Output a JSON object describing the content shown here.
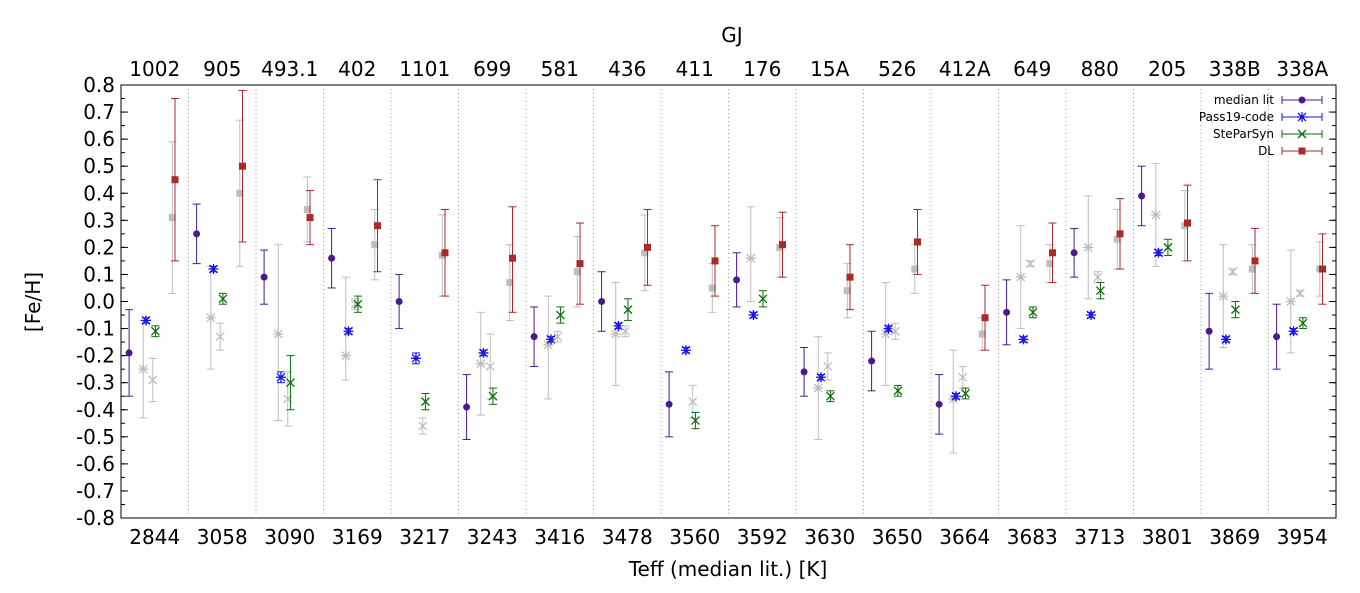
{
  "chart_data": {
    "type": "scatter",
    "title": "",
    "top_axis_title": "GJ",
    "xlabel": "Teff (median lit.) [K]",
    "ylabel": "[Fe/H]",
    "ylim": [
      -0.8,
      0.8
    ],
    "yticks": [
      "0.8",
      "0.7",
      "0.6",
      "0.5",
      "0.4",
      "0.3",
      "0.2",
      "0.1",
      "0.0",
      "-0.1",
      "-0.2",
      "-0.3",
      "-0.4",
      "-0.5",
      "-0.6",
      "-0.7",
      "-0.8"
    ],
    "categories": [
      "2844",
      "3058",
      "3090",
      "3169",
      "3217",
      "3243",
      "3416",
      "3478",
      "3560",
      "3592",
      "3630",
      "3650",
      "3664",
      "3683",
      "3713",
      "3801",
      "3869",
      "3954"
    ],
    "top_categories": [
      "1002",
      "905",
      "493.1",
      "402",
      "1101",
      "699",
      "581",
      "436",
      "411",
      "176",
      "15A",
      "526",
      "412A",
      "649",
      "880",
      "205",
      "338B",
      "338A"
    ],
    "grid": "vertical dotted separators",
    "legend_position": "top-right",
    "colors": {
      "median_lit": "#4b1a8c",
      "pass19": "#1414e6",
      "steparsyn": "#0a6e0a",
      "dl": "#aa2a2a",
      "gray": "#bdbdbd"
    },
    "series": [
      {
        "name": "median lit",
        "marker": "circle",
        "color": "#4b1a8c",
        "values": [
          -0.19,
          0.25,
          0.09,
          0.16,
          0.0,
          -0.39,
          -0.13,
          0.0,
          -0.38,
          0.08,
          -0.26,
          -0.22,
          -0.38,
          -0.04,
          0.18,
          0.39,
          -0.11,
          -0.13
        ],
        "err_low": [
          -0.35,
          0.14,
          -0.01,
          0.05,
          -0.1,
          -0.51,
          -0.24,
          -0.11,
          -0.5,
          -0.02,
          -0.35,
          -0.33,
          -0.49,
          -0.16,
          0.09,
          0.28,
          -0.25,
          -0.25
        ],
        "err_high": [
          -0.03,
          0.36,
          0.19,
          0.27,
          0.1,
          -0.27,
          -0.02,
          0.11,
          -0.26,
          0.18,
          -0.17,
          -0.11,
          -0.27,
          0.08,
          0.27,
          0.5,
          0.03,
          -0.01
        ]
      },
      {
        "name": "Pass19-code",
        "marker": "star",
        "color": "#1414e6",
        "values": [
          -0.07,
          0.12,
          -0.28,
          -0.11,
          -0.21,
          -0.19,
          -0.14,
          -0.09,
          -0.18,
          -0.05,
          -0.28,
          -0.1,
          -0.35,
          -0.14,
          -0.05,
          0.18,
          -0.14,
          -0.11
        ],
        "err_low": [
          -0.08,
          0.11,
          -0.3,
          -0.12,
          -0.23,
          -0.2,
          -0.15,
          -0.1,
          -0.19,
          -0.06,
          -0.29,
          -0.11,
          -0.36,
          -0.15,
          -0.06,
          0.17,
          -0.15,
          -0.12
        ],
        "err_high": [
          -0.06,
          0.13,
          -0.26,
          -0.1,
          -0.19,
          -0.18,
          -0.13,
          -0.08,
          -0.17,
          -0.04,
          -0.27,
          -0.09,
          -0.34,
          -0.13,
          -0.04,
          0.19,
          -0.13,
          -0.1
        ]
      },
      {
        "name": "SteParSyn",
        "marker": "cross",
        "color": "#0a6e0a",
        "values": [
          -0.11,
          0.01,
          -0.3,
          -0.01,
          -0.37,
          -0.35,
          -0.05,
          -0.03,
          -0.44,
          0.01,
          -0.35,
          -0.33,
          -0.34,
          -0.04,
          0.04,
          0.2,
          -0.03,
          -0.08
        ],
        "err_low": [
          -0.13,
          -0.01,
          -0.4,
          -0.04,
          -0.4,
          -0.38,
          -0.08,
          -0.07,
          -0.47,
          -0.02,
          -0.37,
          -0.35,
          -0.36,
          -0.06,
          0.01,
          0.17,
          -0.06,
          -0.1
        ],
        "err_high": [
          -0.09,
          0.03,
          -0.2,
          0.02,
          -0.34,
          -0.32,
          -0.02,
          0.01,
          -0.41,
          0.04,
          -0.33,
          -0.31,
          -0.32,
          -0.02,
          0.07,
          0.23,
          0.0,
          -0.06
        ]
      },
      {
        "name": "DL",
        "marker": "square",
        "color": "#aa2a2a",
        "values": [
          0.45,
          0.5,
          0.31,
          0.28,
          0.18,
          0.16,
          0.14,
          0.2,
          0.15,
          0.21,
          0.09,
          0.22,
          -0.06,
          0.18,
          0.25,
          0.29,
          0.15,
          0.12
        ],
        "err_low": [
          0.15,
          0.22,
          0.21,
          0.11,
          0.02,
          -0.04,
          -0.01,
          0.06,
          0.02,
          0.09,
          -0.03,
          0.1,
          -0.18,
          0.07,
          0.12,
          0.15,
          0.03,
          -0.01
        ],
        "err_high": [
          0.75,
          0.78,
          0.41,
          0.45,
          0.34,
          0.35,
          0.29,
          0.34,
          0.28,
          0.33,
          0.21,
          0.34,
          0.06,
          0.29,
          0.38,
          0.43,
          0.27,
          0.25
        ]
      },
      {
        "marker": "star",
        "color": "#bdbdbd",
        "values": [
          -0.25,
          -0.06,
          -0.12,
          -0.2,
          null,
          -0.23,
          -0.16,
          -0.12,
          null,
          0.16,
          -0.32,
          -0.12,
          -0.36,
          0.09,
          0.2,
          0.32,
          0.02,
          0.0
        ],
        "err_low": [
          -0.43,
          -0.25,
          -0.44,
          -0.29,
          null,
          -0.42,
          -0.36,
          -0.31,
          null,
          0.0,
          -0.51,
          -0.31,
          -0.56,
          -0.1,
          0.01,
          0.13,
          -0.17,
          -0.19
        ],
        "err_high": [
          -0.07,
          0.13,
          0.21,
          0.09,
          null,
          -0.04,
          0.02,
          0.07,
          null,
          0.35,
          -0.13,
          0.07,
          -0.18,
          0.28,
          0.39,
          0.51,
          0.21,
          0.19
        ]
      },
      {
        "marker": "cross",
        "color": "#bdbdbd",
        "values": [
          -0.29,
          -0.13,
          -0.36,
          -0.01,
          -0.46,
          -0.24,
          -0.13,
          -0.11,
          -0.37,
          null,
          -0.24,
          -0.11,
          -0.28,
          0.14,
          0.09,
          null,
          0.11,
          0.03
        ],
        "err_low": [
          -0.37,
          -0.18,
          -0.46,
          -0.03,
          -0.49,
          -0.36,
          -0.15,
          -0.13,
          -0.43,
          null,
          -0.29,
          -0.14,
          -0.32,
          0.13,
          0.07,
          null,
          0.1,
          0.02
        ],
        "err_high": [
          -0.21,
          -0.08,
          -0.26,
          0.01,
          -0.43,
          -0.12,
          -0.11,
          -0.09,
          -0.31,
          null,
          -0.19,
          -0.08,
          -0.24,
          0.15,
          0.11,
          null,
          0.12,
          0.04
        ]
      },
      {
        "marker": "square",
        "color": "#bdbdbd",
        "values": [
          0.31,
          0.4,
          0.34,
          0.21,
          0.17,
          0.07,
          0.11,
          0.18,
          0.05,
          0.2,
          0.04,
          0.12,
          -0.12,
          0.14,
          0.23,
          0.28,
          0.12,
          0.12
        ],
        "err_low": [
          0.03,
          0.13,
          0.22,
          0.08,
          0.02,
          -0.07,
          -0.02,
          0.04,
          -0.04,
          0.09,
          -0.06,
          0.03,
          -0.18,
          0.07,
          0.12,
          0.15,
          0.03,
          0.02
        ],
        "err_high": [
          0.59,
          0.67,
          0.46,
          0.34,
          0.32,
          0.21,
          0.24,
          0.32,
          0.14,
          0.31,
          0.14,
          0.21,
          -0.06,
          0.21,
          0.34,
          0.41,
          0.21,
          0.22
        ]
      }
    ]
  }
}
